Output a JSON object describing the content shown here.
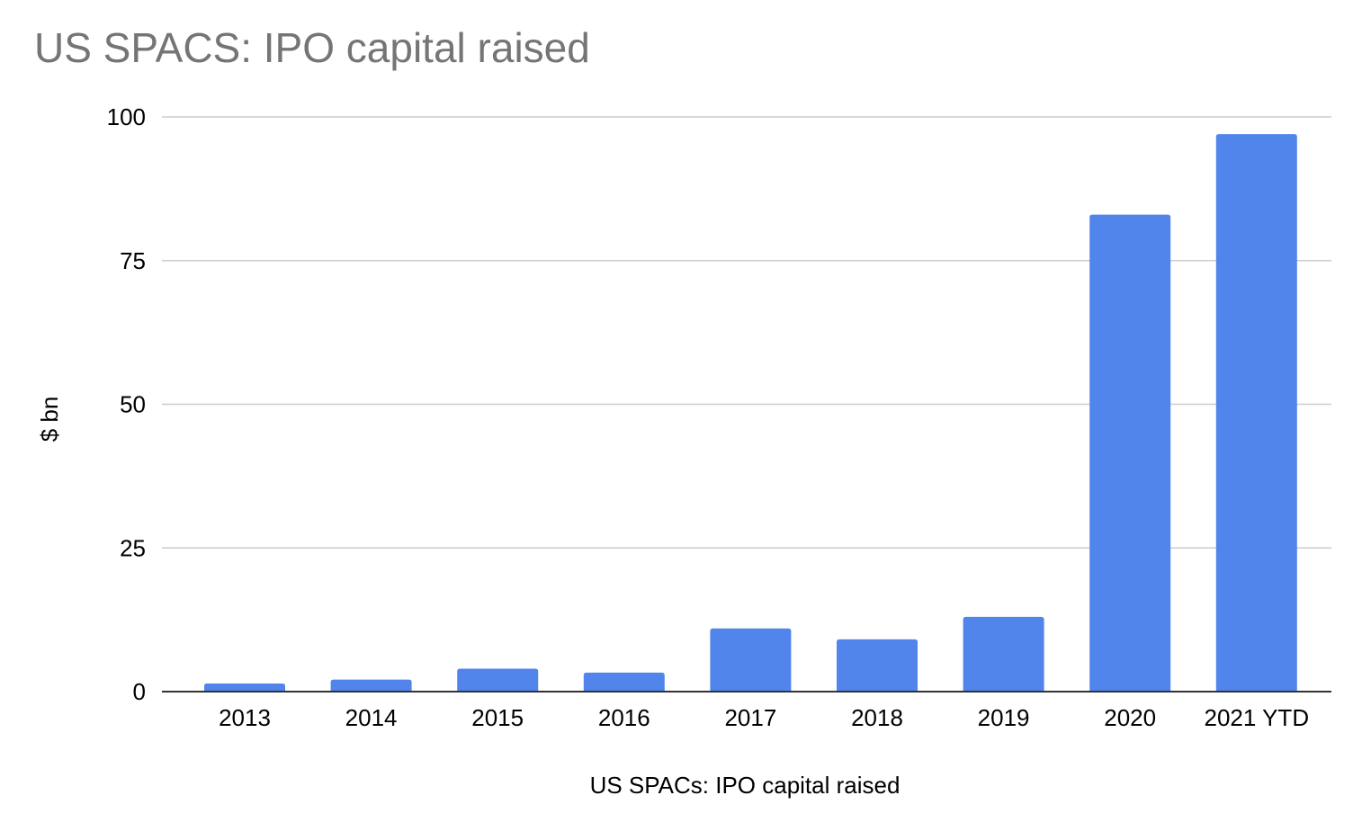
{
  "chart_data": {
    "type": "bar",
    "title": "US SPACS: IPO capital raised",
    "xlabel": "US SPACs: IPO capital raised",
    "ylabel": "$ bn",
    "categories": [
      "2013",
      "2014",
      "2015",
      "2016",
      "2017",
      "2018",
      "2019",
      "2020",
      "2021 YTD"
    ],
    "series": [
      {
        "values": [
          1.4,
          2.1,
          4.0,
          3.3,
          11.0,
          9.1,
          13.0,
          83.0,
          97.0
        ]
      }
    ],
    "ylim": [
      0,
      100
    ],
    "yticks": [
      "0",
      "25",
      "50",
      "75",
      "100"
    ],
    "grid": true,
    "legend": "none",
    "colors": {
      "bar": "#5185ec",
      "grid": "#cccccc",
      "axis": "#333333",
      "title": "#757575"
    }
  }
}
